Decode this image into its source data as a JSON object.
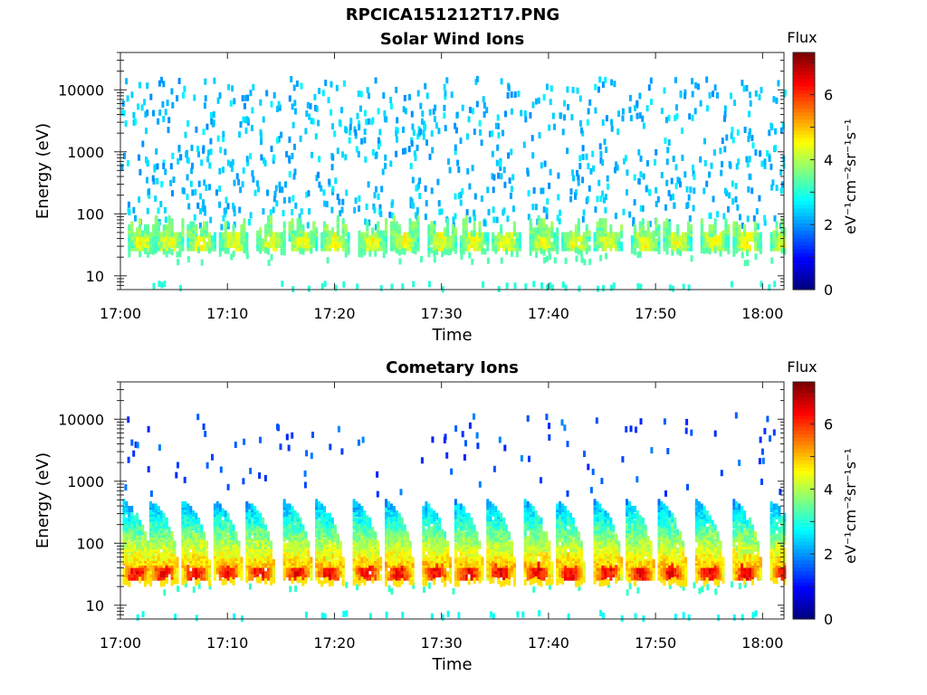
{
  "figure_title": "RPCICA151212T17.PNG",
  "chart_data": [
    {
      "type": "heatmap",
      "title": "Solar Wind Ions",
      "xlabel": "Time",
      "ylabel": "Energy (eV)",
      "x_ticks": [
        "17:00",
        "17:10",
        "17:20",
        "17:30",
        "17:40",
        "17:50",
        "18:00"
      ],
      "x_range": [
        "17:00",
        "18:02"
      ],
      "y_scale": "log",
      "y_ticks": [
        10,
        100,
        1000,
        10000
      ],
      "y_range": [
        6,
        40000
      ],
      "colorbar": {
        "title": "Flux",
        "label": "eV⁻¹cm⁻²sr⁻¹s⁻¹",
        "ticks": [
          0,
          2,
          4,
          6
        ],
        "range": [
          0,
          7.3
        ],
        "colormap": "jet"
      },
      "pulse_times_min": [
        1,
        3.5,
        6.5,
        9.5,
        13,
        16,
        19,
        22.5,
        25.5,
        29,
        32,
        35,
        38.5,
        41.5,
        44.5,
        48,
        51,
        54.5,
        57.5,
        61
      ],
      "band": {
        "energy_ev": [
          28,
          45
        ],
        "peak_flux": 4.8
      },
      "background": {
        "energy_ev": [
          60,
          15000
        ],
        "flux": 2.3
      },
      "low_energy_line": {
        "energy_ev": 6,
        "flux": 3.0
      },
      "grid": false
    },
    {
      "type": "heatmap",
      "title": "Cometary Ions",
      "xlabel": "Time",
      "ylabel": "Energy (eV)",
      "x_ticks": [
        "17:00",
        "17:10",
        "17:20",
        "17:30",
        "17:40",
        "17:50",
        "18:00"
      ],
      "x_range": [
        "17:00",
        "18:02"
      ],
      "y_scale": "log",
      "y_ticks": [
        10,
        100,
        1000,
        10000
      ],
      "y_range": [
        6,
        40000
      ],
      "colorbar": {
        "title": "Flux",
        "label": "eV⁻¹cm⁻²sr⁻¹s⁻¹",
        "ticks": [
          0,
          2,
          4,
          6
        ],
        "range": [
          0,
          7.3
        ],
        "colormap": "jet"
      },
      "pulse_times_min": [
        0.5,
        3,
        6,
        9,
        12,
        15.5,
        18.5,
        22,
        25,
        28.5,
        31.5,
        34.5,
        38,
        41,
        44.5,
        47.5,
        50.5,
        54,
        57.5,
        61
      ],
      "band": {
        "energy_ev": [
          28,
          45
        ],
        "peak_flux": 6.8
      },
      "plume": {
        "energy_ev": [
          45,
          500
        ],
        "flux": [
          5.0,
          2.0
        ]
      },
      "background": {
        "energy_ev": [
          600,
          12000
        ],
        "flux": 1.5
      },
      "low_energy_line": {
        "energy_ev": 6,
        "flux": 2.8
      },
      "grid": false
    }
  ]
}
